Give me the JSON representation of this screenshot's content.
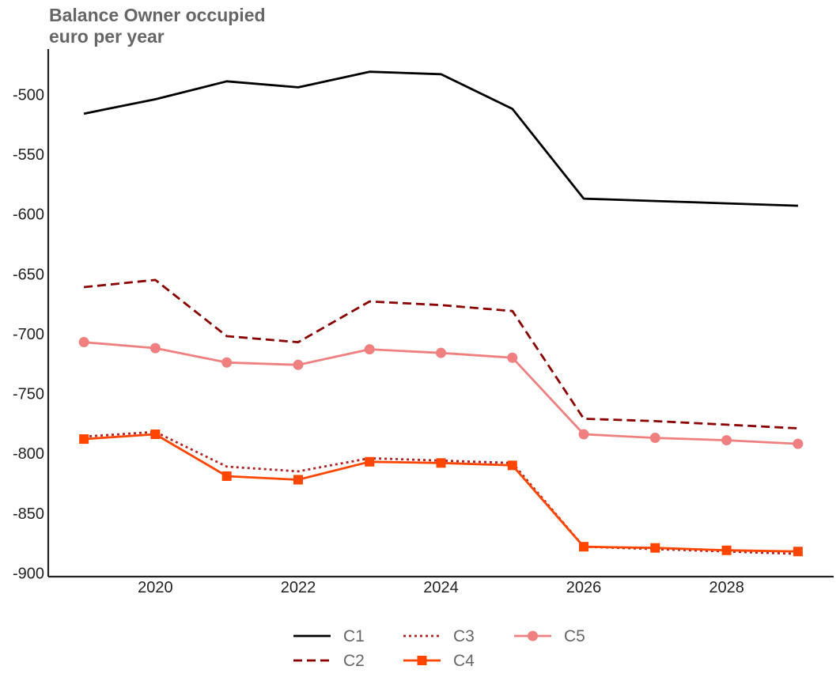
{
  "chart_data": {
    "type": "line",
    "title_line1": "Balance Owner occupied",
    "title_line2": "euro per year",
    "xlabel": "",
    "ylabel": "",
    "x": [
      2019,
      2020,
      2021,
      2022,
      2023,
      2024,
      2025,
      2026,
      2027,
      2028,
      2029
    ],
    "xticks": [
      2020,
      2022,
      2024,
      2026,
      2028
    ],
    "xlim": [
      2018.5,
      2029.5
    ],
    "ylim": [
      -903,
      -462
    ],
    "yticks": [
      -500,
      -550,
      -600,
      -650,
      -700,
      -750,
      -800,
      -850,
      -900
    ],
    "grid": false,
    "legend_position": "bottom-center",
    "series": [
      {
        "name": "C1",
        "color": "#000000",
        "dash": "solid",
        "marker": "none",
        "values": [
          -516,
          -504,
          -489,
          -494,
          -481,
          -483,
          -512,
          -587,
          -589,
          -591,
          -593
        ]
      },
      {
        "name": "C2",
        "color": "#8b0000",
        "dash": "dashed",
        "marker": "none",
        "values": [
          -661,
          -655,
          -702,
          -707,
          -673,
          -676,
          -681,
          -771,
          -773,
          -776,
          -779
        ]
      },
      {
        "name": "C3",
        "color": "#b22222",
        "dash": "dotted",
        "marker": "none",
        "values": [
          -786,
          -782,
          -811,
          -815,
          -804,
          -806,
          -808,
          -878,
          -880,
          -882,
          -884
        ]
      },
      {
        "name": "C4",
        "color": "#ff4500",
        "dash": "solid",
        "marker": "square",
        "values": [
          -788,
          -784,
          -819,
          -822,
          -807,
          -808,
          -810,
          -878,
          -879,
          -881,
          -882
        ]
      },
      {
        "name": "C5",
        "color": "#f08080",
        "dash": "solid",
        "marker": "circle",
        "values": [
          -707,
          -712,
          -724,
          -726,
          -713,
          -716,
          -720,
          -784,
          -787,
          -789,
          -792
        ]
      }
    ]
  }
}
